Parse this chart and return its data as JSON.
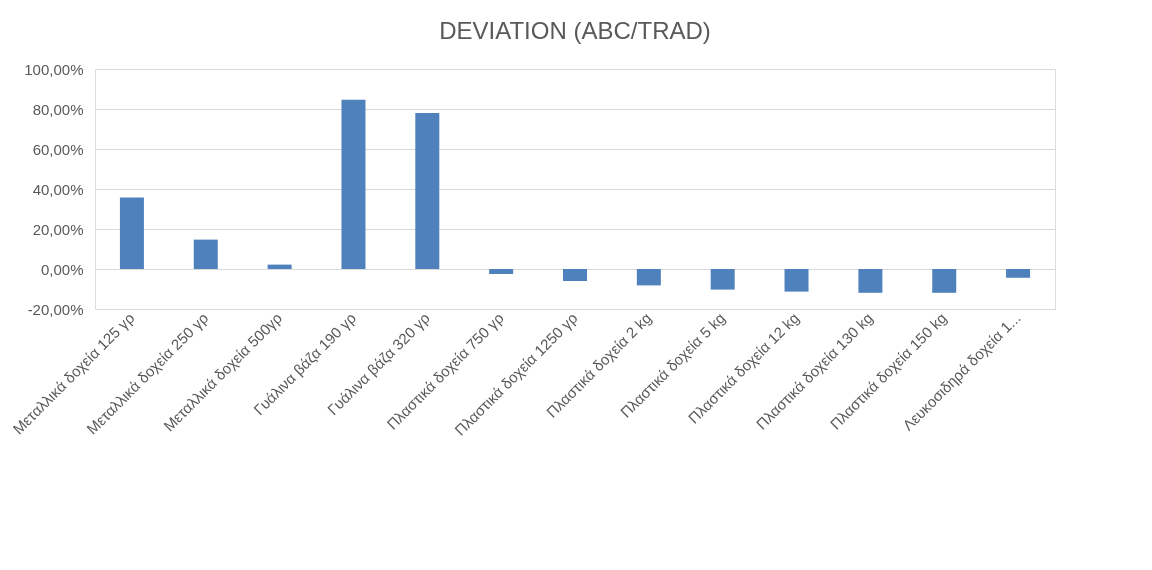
{
  "chart_data": {
    "type": "bar",
    "title": "DEVIATION (ABC/TRAD)",
    "categories": [
      "Μεταλλικά δοχεία 125 γρ",
      "Μεταλλικά δοχεία 250 γρ",
      "Μεταλλικά δοχεία 500γρ",
      "Γυάλινα βάζα 190 γρ",
      "Γυάλινα βάζα 320 γρ",
      "Πλαστικά δοχεία 750 γρ",
      "Πλαστικά δοχεία 1250 γρ",
      "Πλαστικά δοχεία 2 kg",
      "Πλαστικά δοχεία  5 kg",
      "Πλαστικά δοχεία 12 kg",
      "Πλαστικά δοχεία 130 kg",
      "Πλαστικά δοχεία 150 kg",
      "Λευκοσιδηρά δοχεία 1..."
    ],
    "values": [
      35.7,
      14.7,
      2.2,
      84.6,
      78.0,
      -2.5,
      -6.0,
      -8.2,
      -10.3,
      -11.3,
      -11.9,
      -11.9,
      -4.4
    ],
    "color": "#4f81bd",
    "ylim": [
      -20,
      100
    ],
    "yticks": [
      {
        "value": -20,
        "label": "-20,00%"
      },
      {
        "value": 0,
        "label": "0,00%"
      },
      {
        "value": 20,
        "label": "20,00%"
      },
      {
        "value": 40,
        "label": "40,00%"
      },
      {
        "value": 60,
        "label": "60,00%"
      },
      {
        "value": 80,
        "label": "80,00%"
      },
      {
        "value": 100,
        "label": "100,00%"
      }
    ],
    "grid": "y"
  }
}
